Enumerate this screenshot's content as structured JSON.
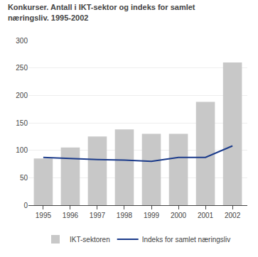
{
  "chart_data": {
    "type": "bar",
    "title": "Konkurser. Antall i IKT-sektor og indeks for samlet\nnæringsliv. 1995-2002",
    "x": [
      1995,
      1996,
      1997,
      1998,
      1999,
      2000,
      2001,
      2002
    ],
    "series": [
      {
        "name": "IKT-sektoren",
        "type": "bar",
        "color": "#c8c8c8",
        "values": [
          85,
          105,
          125,
          138,
          130,
          130,
          188,
          260
        ]
      },
      {
        "name": "Indeks for samlet næringsliv",
        "type": "line",
        "color": "#1a3a8a",
        "values": [
          87,
          85,
          83,
          82,
          80,
          87,
          87,
          108
        ]
      }
    ],
    "xlim": [
      1994.45,
      2002.55
    ],
    "xticks": [
      1995,
      1996,
      1997,
      1998,
      1999,
      2000,
      2001,
      2002
    ],
    "ylim": [
      0,
      300
    ],
    "yticks": [
      0,
      50,
      100,
      150,
      200,
      250,
      300
    ],
    "grid": "y",
    "legend": "bottom"
  }
}
